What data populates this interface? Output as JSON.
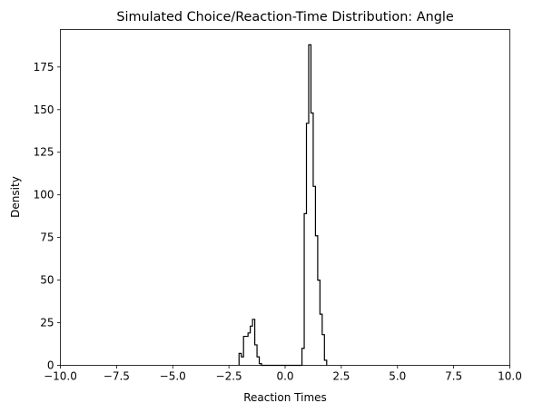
{
  "chart_data": {
    "type": "histogram",
    "title": "Simulated Choice/Reaction-Time Distribution: Angle",
    "xlabel": "Reaction Times",
    "ylabel": "Density",
    "xlim": [
      -10,
      10
    ],
    "ylim": [
      0,
      197
    ],
    "xticks": [
      -10,
      -7.5,
      -5,
      -2.5,
      0,
      2.5,
      5,
      7.5,
      10
    ],
    "xtick_labels": [
      "−10.0",
      "−7.5",
      "−5.0",
      "−2.5",
      "0.0",
      "2.5",
      "5.0",
      "7.5",
      "10.0"
    ],
    "yticks": [
      0,
      25,
      50,
      75,
      100,
      125,
      150,
      175
    ],
    "ytick_labels": [
      "0",
      "25",
      "50",
      "75",
      "100",
      "125",
      "150",
      "175"
    ],
    "grid": false,
    "histtype": "step",
    "line_color": "#000000",
    "bin_width": 0.1,
    "bin_edges_start": -2.05,
    "counts": [
      7,
      5,
      17,
      17,
      19,
      23,
      27,
      12,
      5,
      1,
      0,
      0,
      0,
      0,
      0,
      0,
      0,
      0,
      0,
      0,
      0,
      0,
      0,
      0,
      0,
      0,
      0,
      0,
      10,
      89,
      142,
      188,
      148,
      105,
      76,
      50,
      30,
      18,
      3
    ]
  }
}
